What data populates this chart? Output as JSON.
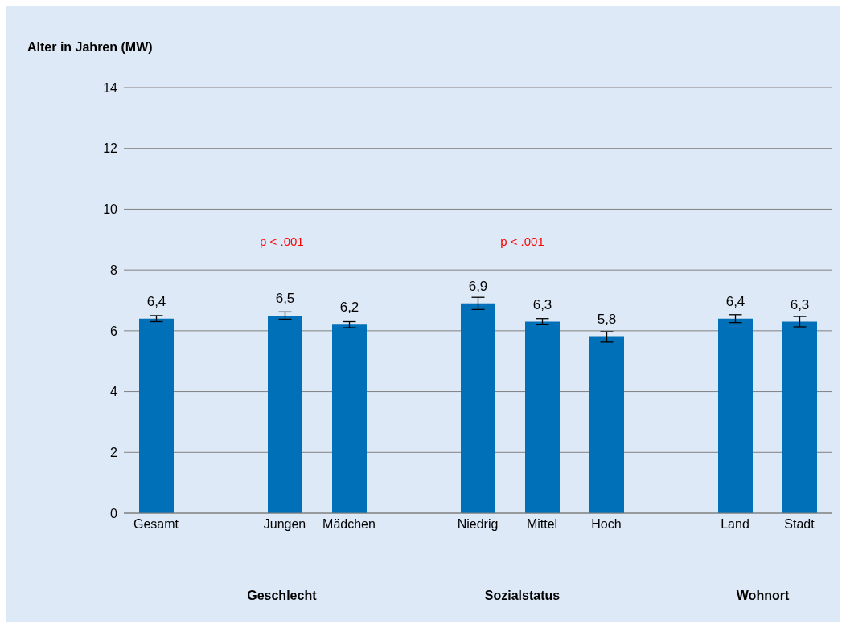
{
  "chart_data": {
    "type": "bar",
    "ylabel": "Alter in Jahren (MW)",
    "categories": [
      "Gesamt",
      null,
      "Jungen",
      "Mädchen",
      null,
      "Niedrig",
      "Mittel",
      "Hoch",
      null,
      "Land",
      "Stadt"
    ],
    "values": [
      6.4,
      null,
      6.5,
      6.2,
      null,
      6.9,
      6.3,
      5.8,
      null,
      6.4,
      6.3
    ],
    "errors": [
      0.1,
      null,
      0.12,
      0.1,
      null,
      0.2,
      0.1,
      0.17,
      null,
      0.13,
      0.17
    ],
    "value_labels": [
      "6,4",
      null,
      "6,5",
      "6,2",
      null,
      "6,9",
      "6,3",
      "5,8",
      null,
      "6,4",
      "6,3"
    ],
    "color": "#0070b8",
    "ylim": [
      0,
      14
    ],
    "yticks": [
      0,
      2,
      4,
      6,
      8,
      10,
      12,
      14
    ],
    "grid": "y",
    "annotations": [
      "p < .001",
      "p < .001",
      "Geschlecht",
      "Sozialstatus",
      "Wohnort"
    ]
  }
}
